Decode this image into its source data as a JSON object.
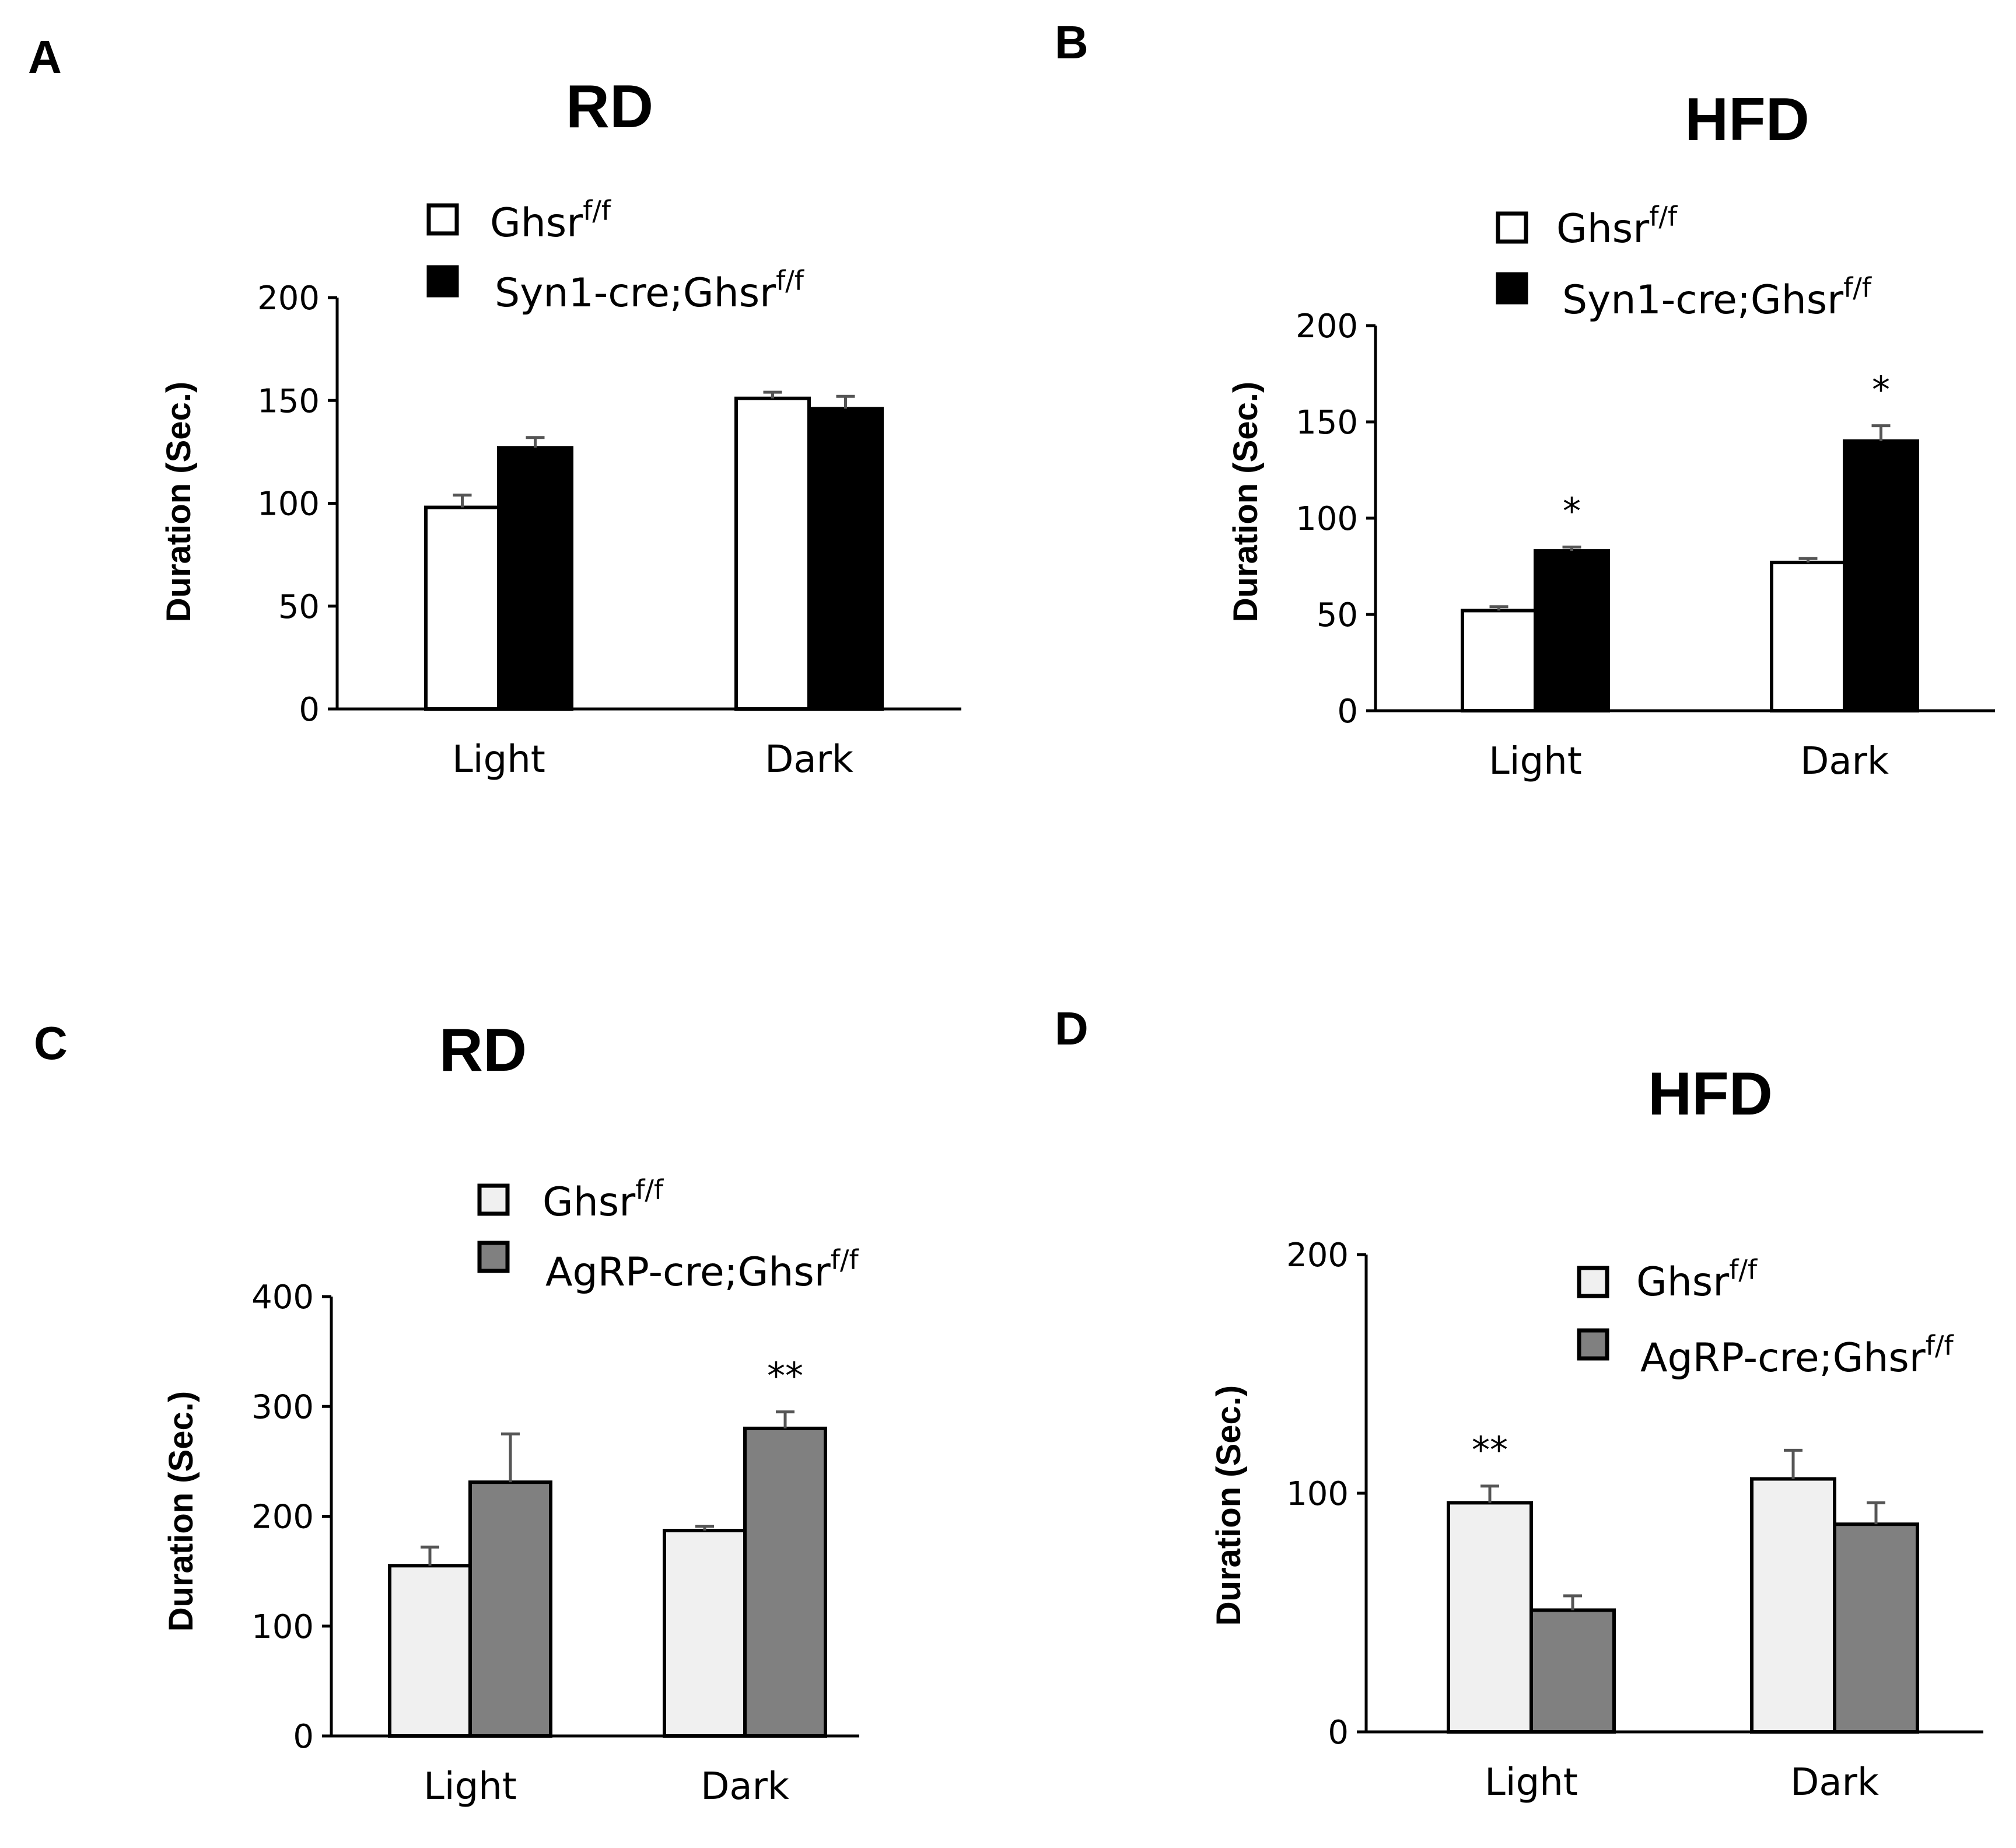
{
  "chart_data": [
    {
      "type": "bar",
      "panel": "A",
      "title": "RD",
      "ylabel": "Duration (Sec.)",
      "ylim": [
        0,
        200
      ],
      "yticks": [
        0,
        50,
        100,
        150,
        200
      ],
      "categories": [
        "Light",
        "Dark"
      ],
      "series": [
        {
          "name": "Ghsr",
          "sup": "f/f",
          "color": "#ffffff",
          "values": [
            98,
            151
          ],
          "errors": [
            6,
            3
          ]
        },
        {
          "name": "Syn1-cre;Ghsr",
          "sup": "f/f",
          "color": "#000000",
          "values": [
            127,
            146
          ],
          "errors": [
            5,
            6
          ]
        }
      ],
      "annotations": [
        [
          "",
          ""
        ],
        [
          "",
          ""
        ]
      ]
    },
    {
      "type": "bar",
      "panel": "B",
      "title": "HFD",
      "ylabel": "Duration (Sec.)",
      "ylim": [
        0,
        200
      ],
      "yticks": [
        0,
        50,
        100,
        150,
        200
      ],
      "categories": [
        "Light",
        "Dark"
      ],
      "series": [
        {
          "name": "Ghsr",
          "sup": "f/f",
          "color": "#ffffff",
          "values": [
            52,
            77
          ],
          "errors": [
            2,
            2
          ]
        },
        {
          "name": "Syn1-cre;Ghsr",
          "sup": "f/f",
          "color": "#000000",
          "values": [
            83,
            140
          ],
          "errors": [
            2,
            8
          ]
        }
      ],
      "annotations": [
        [
          "",
          "*"
        ],
        [
          "",
          "*"
        ]
      ]
    },
    {
      "type": "bar",
      "panel": "C",
      "title": "RD",
      "ylabel": "Duration (Sec.)",
      "ylim": [
        0,
        400
      ],
      "yticks": [
        0,
        100,
        200,
        300,
        400
      ],
      "categories": [
        "Light",
        "Dark"
      ],
      "series": [
        {
          "name": "Ghsr",
          "sup": "f/f",
          "color": "#f0f0f0",
          "values": [
            155,
            187
          ],
          "errors": [
            17,
            4
          ]
        },
        {
          "name": "AgRP-cre;Ghsr",
          "sup": "f/f",
          "color": "#808080",
          "values": [
            231,
            280
          ],
          "errors": [
            44,
            15
          ]
        }
      ],
      "annotations": [
        [
          "",
          ""
        ],
        [
          "",
          "**"
        ]
      ]
    },
    {
      "type": "bar",
      "panel": "D",
      "title": "HFD",
      "ylabel": "Duration (Sec.)",
      "ylim": [
        0,
        200
      ],
      "yticks": [
        0,
        100,
        200
      ],
      "categories": [
        "Light",
        "Dark"
      ],
      "series": [
        {
          "name": "Ghsr",
          "sup": "f/f",
          "color": "#f0f0f0",
          "values": [
            96,
            106
          ],
          "errors": [
            7,
            12
          ]
        },
        {
          "name": "AgRP-cre;Ghsr",
          "sup": "f/f",
          "color": "#808080",
          "values": [
            51,
            87
          ],
          "errors": [
            6,
            9
          ]
        }
      ],
      "annotations": [
        [
          "**",
          ""
        ],
        [
          "",
          ""
        ]
      ]
    }
  ]
}
